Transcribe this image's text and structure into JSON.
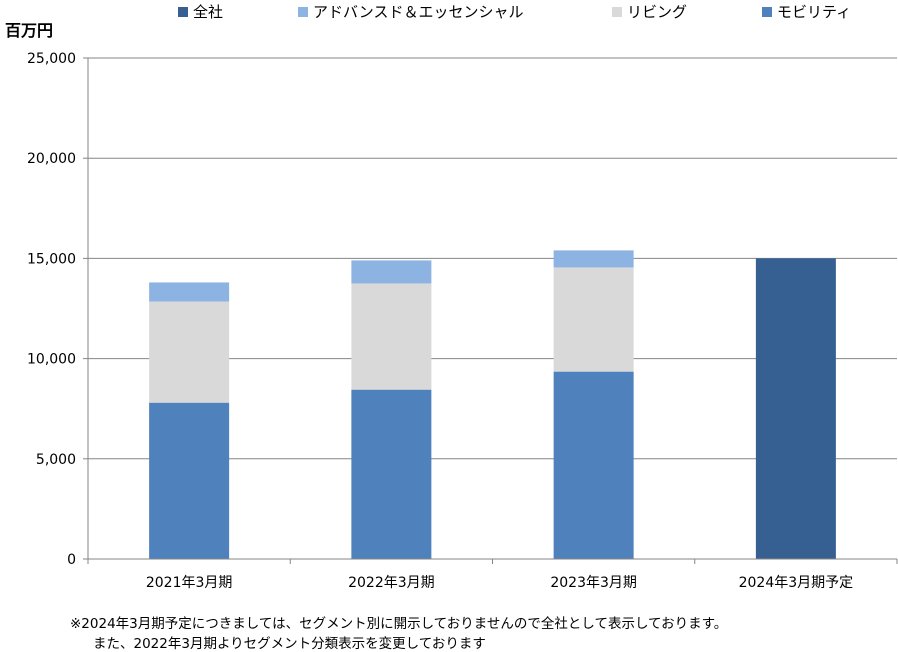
{
  "chart_data": {
    "type": "bar",
    "stacked": true,
    "unit_label": "百万円",
    "categories": [
      "2021年3月期",
      "2022年3月期",
      "2023年3月期",
      "2024年3月期予定"
    ],
    "series": [
      {
        "name": "モビリティ",
        "color": "#4f81bd",
        "values": [
          7800,
          8450,
          9350,
          null
        ]
      },
      {
        "name": "リビング",
        "color": "#d9d9d9",
        "values": [
          5050,
          5300,
          5200,
          null
        ]
      },
      {
        "name": "アドバンスド＆エッセンシャル",
        "color": "#8db3e2",
        "values": [
          950,
          1150,
          850,
          null
        ]
      },
      {
        "name": "全社",
        "color": "#366092",
        "values": [
          null,
          null,
          null,
          15000
        ]
      }
    ],
    "legend_order": [
      "全社",
      "アドバンスド＆エッセンシャル",
      "リビング",
      "モビリティ"
    ],
    "legend_position": "top",
    "ylim": [
      0,
      25000
    ],
    "yticks": [
      0,
      5000,
      10000,
      15000,
      20000,
      25000
    ],
    "ytick_labels": [
      "0",
      "5,000",
      "10,000",
      "15,000",
      "20,000",
      "25,000"
    ],
    "grid": true
  },
  "notes": [
    "※2024年3月期予定につきましては、セグメント別に開示しておりませんので全社として表示しております。",
    "また、2022年3月期よりセグメント分類表示を変更しております"
  ]
}
